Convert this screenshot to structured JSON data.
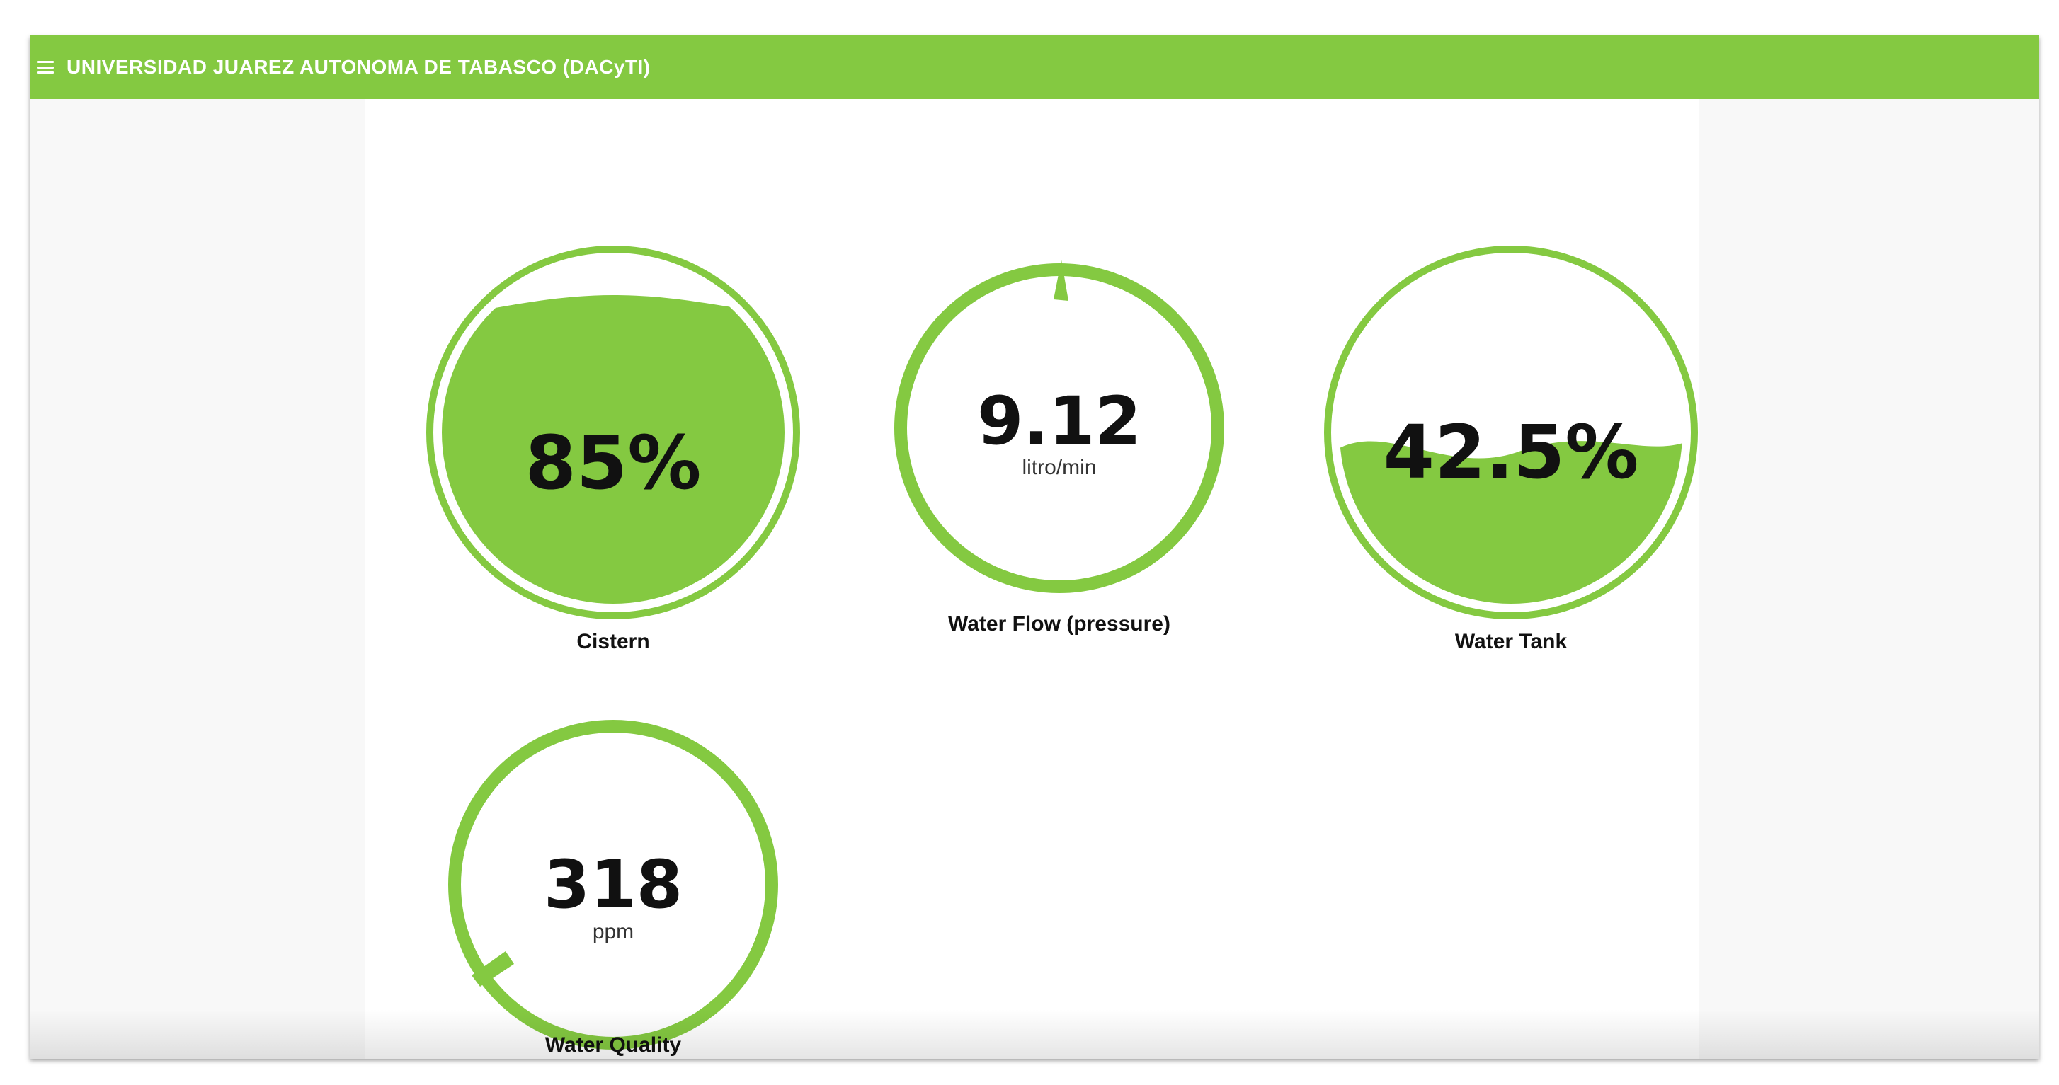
{
  "header": {
    "title": "UNIVERSIDAD JUAREZ AUTONOMA DE TABASCO (DACyTI)",
    "menu_icon": "hamburger-menu-icon"
  },
  "colors": {
    "accent": "#84c941",
    "text": "#111111"
  },
  "gauges": [
    {
      "id": "cistern",
      "type": "liquid",
      "value": "85%",
      "fill_fraction": 0.85,
      "label": "Cistern"
    },
    {
      "id": "water-flow",
      "type": "ring",
      "value": "9.12",
      "unit": "litro/min",
      "label": "Water Flow (pressure)"
    },
    {
      "id": "water-tank",
      "type": "liquid",
      "value": "42.5%",
      "fill_fraction": 0.425,
      "label": "Water Tank"
    },
    {
      "id": "water-quality",
      "type": "ring",
      "value": "318",
      "unit": "ppm",
      "label": "Water Quality"
    }
  ]
}
